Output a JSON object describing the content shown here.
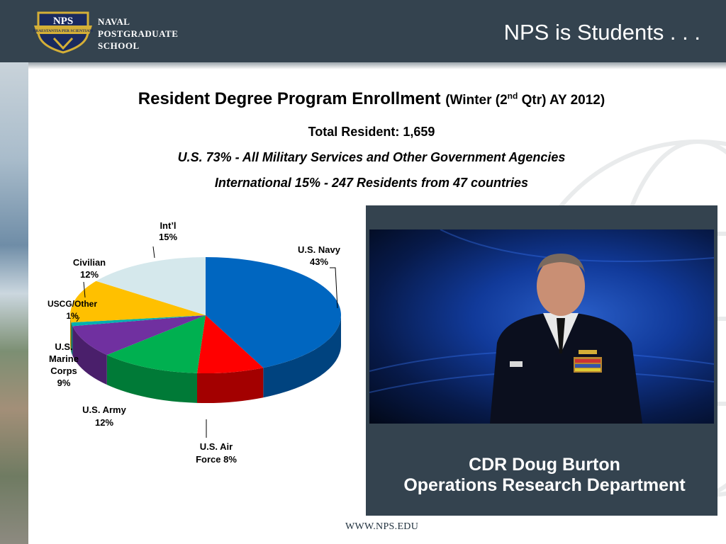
{
  "header": {
    "logo_badge": "NPS",
    "logo_motto": "PRAESTANTIA PER SCIENTIAM",
    "logo_lines": [
      "NAVAL",
      "POSTGRADUATE",
      "SCHOOL"
    ],
    "slide_title": "NPS is Students . . ."
  },
  "headings": {
    "title_main": "Resident Degree Program Enrollment",
    "title_sub_pre": "(Winter (2",
    "title_sub_sup": "nd",
    "title_sub_post": " Qtr) AY 2012)",
    "total": "Total Resident: 1,659",
    "us_line": "U.S. 73% - All Military Services and Other Government Agencies",
    "intl_line": "International 15% -  247 Residents from 47 countries"
  },
  "chart_data": {
    "type": "pie",
    "slices": [
      {
        "label": "U.S. Navy 43%",
        "value": 43,
        "color": "#0066c0",
        "side": "#00437f"
      },
      {
        "label": "U.S. Air Force 8%",
        "value": 8,
        "color": "#ff0000",
        "side": "#a30000"
      },
      {
        "label": "U.S. Army 12%",
        "value": 12,
        "color": "#00b050",
        "side": "#007a37"
      },
      {
        "label": "U.S. Marine Corps 9%",
        "value": 9,
        "color": "#7030a0",
        "side": "#4a1f6b"
      },
      {
        "label": "USCG/Other 1%",
        "value": 1,
        "color": "#00b0b0",
        "side": "#007575"
      },
      {
        "label": "Civilian 12%",
        "value": 12,
        "color": "#ffc000",
        "side": "#b38600"
      },
      {
        "label": "Int’l 15%",
        "value": 15,
        "color": "#d5e8ec",
        "side": "#96a8ad"
      }
    ],
    "labels": {
      "navy": [
        "U.S. Navy",
        "43%"
      ],
      "airforce": [
        "U.S. Air",
        "Force 8%"
      ],
      "army": [
        "U.S. Army",
        "12%"
      ],
      "marines": [
        "U.S.",
        "Marine",
        "Corps",
        "9%"
      ],
      "uscg": [
        "USCG/Other",
        "1%"
      ],
      "civilian": [
        "Civilian",
        "12%"
      ],
      "intl": [
        "Int’l",
        "15%"
      ]
    }
  },
  "photo": {
    "caption_name": "CDR Doug Burton",
    "caption_dept": "Operations Research Department"
  },
  "footer": {
    "url": "WWW.NPS.EDU"
  }
}
